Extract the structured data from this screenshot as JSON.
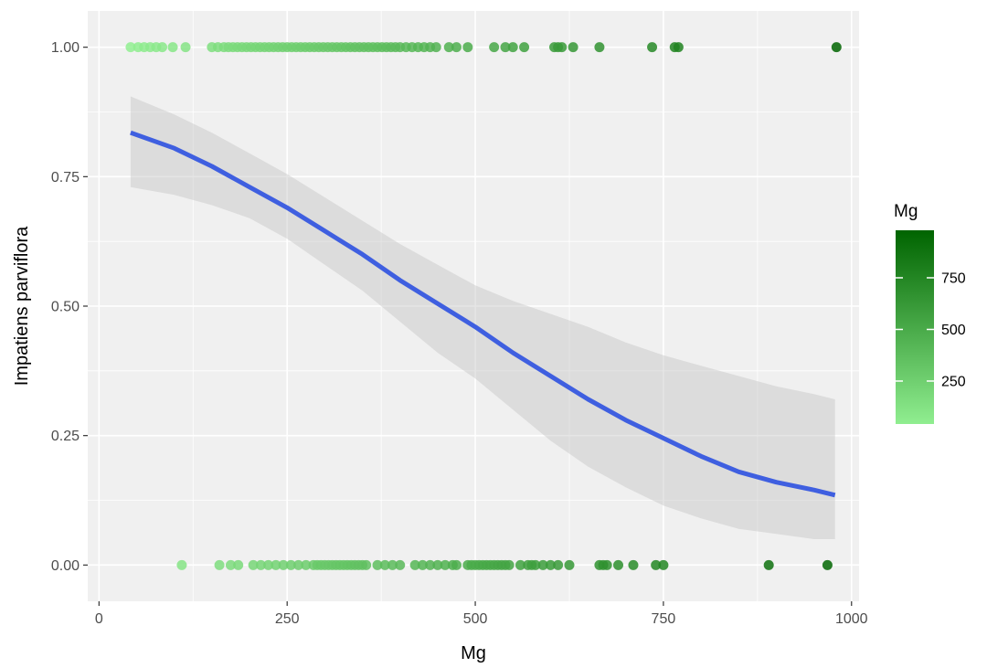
{
  "chart_data": {
    "type": "scatter",
    "xlabel": "Mg",
    "ylabel": "Impatiens parviflora",
    "xlim": [
      -15,
      1010
    ],
    "ylim": [
      -0.07,
      1.07
    ],
    "x_ticks": [
      0,
      250,
      500,
      750,
      1000
    ],
    "x_tick_labels": [
      "0",
      "250",
      "500",
      "750",
      "1000"
    ],
    "y_ticks": [
      0,
      0.25,
      0.5,
      0.75,
      1.0
    ],
    "y_tick_labels": [
      "0.00",
      "0.25",
      "0.50",
      "0.75",
      "1.00"
    ],
    "grid": true,
    "panel_background": "#f0f0f0",
    "points": {
      "y1_x": [
        42,
        52,
        60,
        68,
        76,
        84,
        98,
        115,
        150,
        158,
        166,
        172,
        178,
        184,
        190,
        196,
        202,
        208,
        214,
        220,
        226,
        232,
        238,
        244,
        250,
        256,
        262,
        268,
        274,
        280,
        286,
        292,
        298,
        304,
        310,
        316,
        322,
        328,
        334,
        340,
        346,
        352,
        358,
        364,
        370,
        376,
        382,
        388,
        394,
        400,
        408,
        416,
        424,
        432,
        440,
        448,
        465,
        475,
        490,
        525,
        540,
        550,
        565,
        605,
        610,
        615,
        630,
        665,
        735,
        765,
        770,
        980
      ],
      "y0_x": [
        110,
        160,
        175,
        185,
        205,
        215,
        225,
        235,
        245,
        255,
        265,
        275,
        285,
        290,
        295,
        300,
        305,
        310,
        315,
        320,
        325,
        330,
        335,
        340,
        345,
        350,
        355,
        370,
        380,
        390,
        400,
        420,
        430,
        440,
        450,
        460,
        470,
        475,
        490,
        495,
        500,
        505,
        510,
        515,
        520,
        525,
        530,
        535,
        540,
        545,
        560,
        570,
        575,
        580,
        590,
        600,
        610,
        625,
        665,
        670,
        675,
        690,
        710,
        740,
        750,
        890,
        968
      ]
    },
    "fit_curve": {
      "name": "fit",
      "color": "#3f5fe0",
      "x": [
        42,
        100,
        150,
        200,
        250,
        300,
        350,
        400,
        450,
        500,
        550,
        600,
        650,
        700,
        750,
        800,
        850,
        900,
        950,
        978
      ],
      "y": [
        0.835,
        0.805,
        0.77,
        0.73,
        0.69,
        0.645,
        0.6,
        0.55,
        0.505,
        0.46,
        0.41,
        0.365,
        0.32,
        0.28,
        0.245,
        0.21,
        0.18,
        0.16,
        0.145,
        0.135
      ],
      "ci_upper": [
        0.905,
        0.87,
        0.835,
        0.795,
        0.755,
        0.71,
        0.665,
        0.62,
        0.58,
        0.54,
        0.51,
        0.485,
        0.46,
        0.43,
        0.405,
        0.385,
        0.365,
        0.345,
        0.33,
        0.32
      ],
      "ci_lower": [
        0.73,
        0.715,
        0.695,
        0.67,
        0.63,
        0.58,
        0.53,
        0.47,
        0.41,
        0.36,
        0.3,
        0.24,
        0.19,
        0.15,
        0.115,
        0.09,
        0.07,
        0.06,
        0.05,
        0.05
      ]
    },
    "legend": {
      "title": "Mg",
      "type": "colorbar",
      "placement": "right",
      "color_low": "#90ee90",
      "color_high": "#006400",
      "value_range": [
        42,
        980
      ],
      "ticks": [
        250,
        500,
        750
      ],
      "tick_labels": [
        "250",
        "500",
        "750"
      ]
    }
  }
}
